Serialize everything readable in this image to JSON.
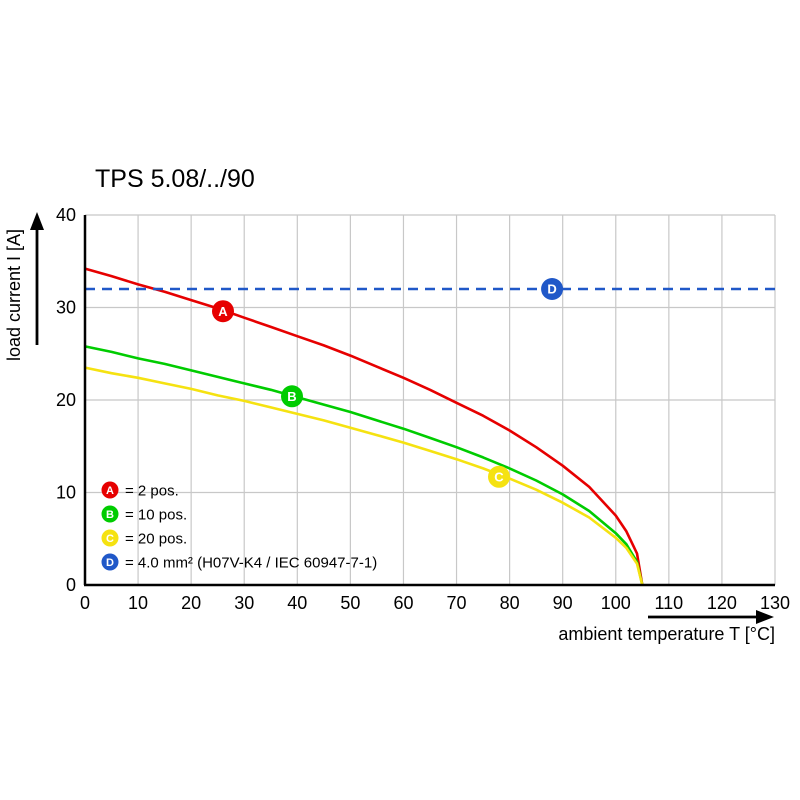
{
  "page": {
    "background": "#ffffff"
  },
  "chart_data": {
    "type": "line",
    "title": "TPS 5.08/../90",
    "xlabel": "ambient temperature T [°C]",
    "ylabel": "load current I [A]",
    "xlim": [
      0,
      130
    ],
    "ylim": [
      0,
      40
    ],
    "x_ticks": [
      0,
      10,
      20,
      30,
      40,
      50,
      60,
      70,
      80,
      90,
      100,
      110,
      120,
      130
    ],
    "y_ticks": [
      0,
      10,
      20,
      30,
      40
    ],
    "grid": true,
    "grid_color": "#c8c8c8",
    "axis_color": "#000000",
    "legend_position": "inside-lower-left",
    "series": [
      {
        "name": "A",
        "legend_label": "= 2 pos.",
        "color": "#e60000",
        "style": "solid",
        "marker": {
          "x": 26,
          "y": 29.6
        },
        "points": [
          [
            0,
            34.2
          ],
          [
            5,
            33.4
          ],
          [
            10,
            32.5
          ],
          [
            15,
            31.7
          ],
          [
            20,
            30.8
          ],
          [
            25,
            29.9
          ],
          [
            30,
            28.9
          ],
          [
            35,
            27.9
          ],
          [
            40,
            26.9
          ],
          [
            45,
            25.9
          ],
          [
            50,
            24.8
          ],
          [
            55,
            23.6
          ],
          [
            60,
            22.4
          ],
          [
            65,
            21.1
          ],
          [
            70,
            19.7
          ],
          [
            75,
            18.3
          ],
          [
            80,
            16.7
          ],
          [
            85,
            14.9
          ],
          [
            90,
            12.9
          ],
          [
            95,
            10.6
          ],
          [
            100,
            7.5
          ],
          [
            102,
            5.8
          ],
          [
            104,
            3.4
          ],
          [
            105,
            0
          ]
        ]
      },
      {
        "name": "B",
        "legend_label": "= 10 pos.",
        "color": "#00cc00",
        "style": "solid",
        "marker": {
          "x": 39,
          "y": 20.4
        },
        "points": [
          [
            0,
            25.8
          ],
          [
            5,
            25.2
          ],
          [
            10,
            24.5
          ],
          [
            15,
            23.9
          ],
          [
            20,
            23.2
          ],
          [
            25,
            22.5
          ],
          [
            30,
            21.8
          ],
          [
            35,
            21.1
          ],
          [
            40,
            20.3
          ],
          [
            45,
            19.5
          ],
          [
            50,
            18.7
          ],
          [
            55,
            17.8
          ],
          [
            60,
            16.9
          ],
          [
            65,
            15.9
          ],
          [
            70,
            14.9
          ],
          [
            75,
            13.8
          ],
          [
            80,
            12.6
          ],
          [
            85,
            11.3
          ],
          [
            90,
            9.8
          ],
          [
            95,
            8.0
          ],
          [
            100,
            5.6
          ],
          [
            102,
            4.4
          ],
          [
            104,
            2.5
          ],
          [
            105,
            0
          ]
        ]
      },
      {
        "name": "C",
        "legend_label": "= 20 pos.",
        "color": "#f5e211",
        "style": "solid",
        "marker": {
          "x": 78,
          "y": 11.7
        },
        "points": [
          [
            0,
            23.5
          ],
          [
            5,
            22.9
          ],
          [
            10,
            22.4
          ],
          [
            15,
            21.8
          ],
          [
            20,
            21.2
          ],
          [
            25,
            20.5
          ],
          [
            30,
            19.9
          ],
          [
            35,
            19.2
          ],
          [
            40,
            18.5
          ],
          [
            45,
            17.8
          ],
          [
            50,
            17.0
          ],
          [
            55,
            16.2
          ],
          [
            60,
            15.4
          ],
          [
            65,
            14.5
          ],
          [
            70,
            13.6
          ],
          [
            75,
            12.6
          ],
          [
            80,
            11.5
          ],
          [
            85,
            10.3
          ],
          [
            90,
            8.9
          ],
          [
            95,
            7.3
          ],
          [
            100,
            5.1
          ],
          [
            102,
            4.0
          ],
          [
            104,
            2.3
          ],
          [
            105,
            0
          ]
        ]
      },
      {
        "name": "D",
        "legend_label": "= 4.0 mm² (H07V-K4 / IEC 60947-7-1)",
        "color": "#2058c8",
        "style": "dashed",
        "marker": {
          "x": 88,
          "y": 32
        },
        "points": [
          [
            0,
            32
          ],
          [
            130,
            32
          ]
        ]
      }
    ]
  }
}
